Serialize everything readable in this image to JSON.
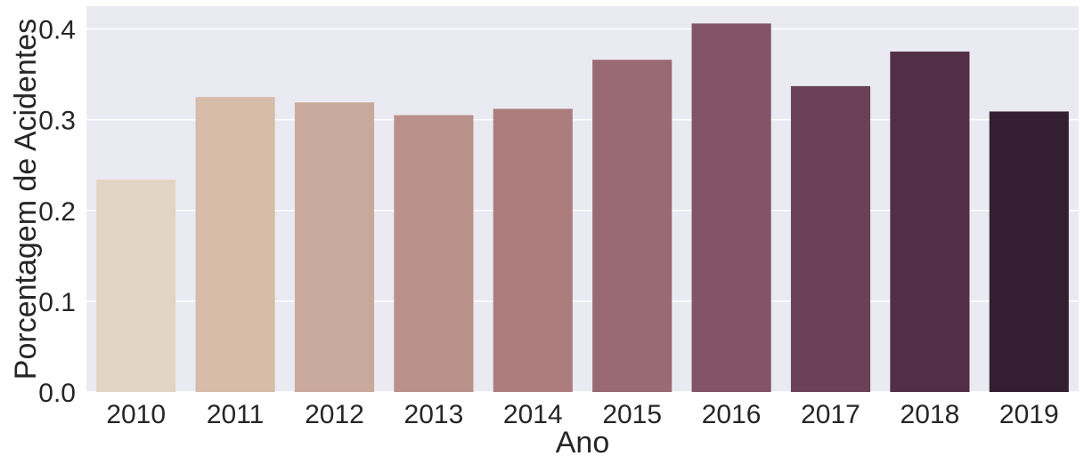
{
  "chart_data": {
    "type": "bar",
    "title": "",
    "xlabel": "Ano",
    "ylabel": "Porcentagem de Acidentes",
    "categories": [
      "2010",
      "2011",
      "2012",
      "2013",
      "2014",
      "2015",
      "2016",
      "2017",
      "2018",
      "2019"
    ],
    "values": [
      0.234,
      0.325,
      0.319,
      0.305,
      0.312,
      0.366,
      0.406,
      0.337,
      0.375,
      0.309
    ],
    "colors": [
      "#e2d5c5",
      "#d6bca9",
      "#c9a99c",
      "#ba918a",
      "#ad7d7e",
      "#996a74",
      "#835467",
      "#6b4159",
      "#532e47",
      "#341e31"
    ],
    "ylim": [
      0,
      0.425
    ],
    "yticks": [
      0.0,
      0.1,
      0.2,
      0.3,
      0.4
    ],
    "ytick_labels": [
      "0.0",
      "0.1",
      "0.2",
      "0.3",
      "0.4"
    ],
    "grid": true,
    "background": "#eaeaf2",
    "gridcolor": "#ffffff"
  }
}
